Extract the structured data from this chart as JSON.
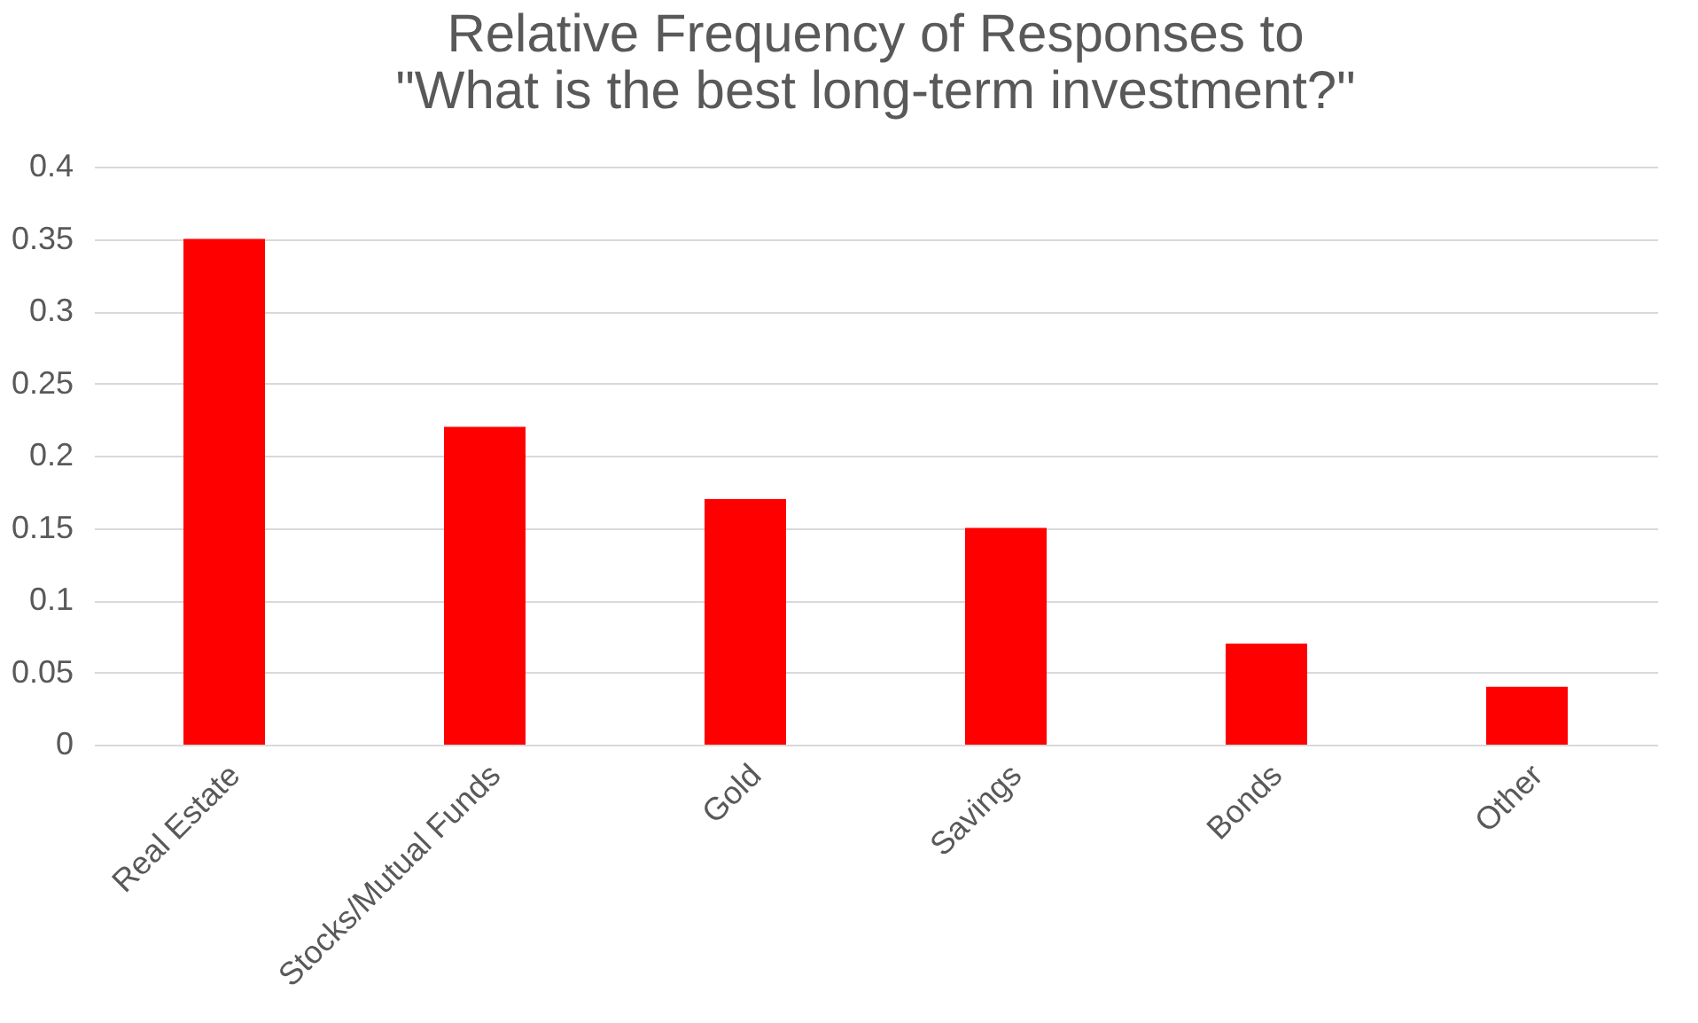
{
  "chart_data": {
    "type": "bar",
    "title": [
      "Relative Frequency of Responses to",
      "\"What is the best long-term investment?\""
    ],
    "categories": [
      "Real Estate",
      "Stocks/Mutual Funds",
      "Gold",
      "Savings",
      "Bonds",
      "Other"
    ],
    "values": [
      0.35,
      0.22,
      0.17,
      0.15,
      0.07,
      0.04
    ],
    "color": "#ff0000",
    "ylim": [
      0,
      0.4
    ],
    "yticks": [
      0,
      0.05,
      0.1,
      0.15,
      0.2,
      0.25,
      0.3,
      0.35,
      0.4
    ],
    "grid": "y"
  }
}
